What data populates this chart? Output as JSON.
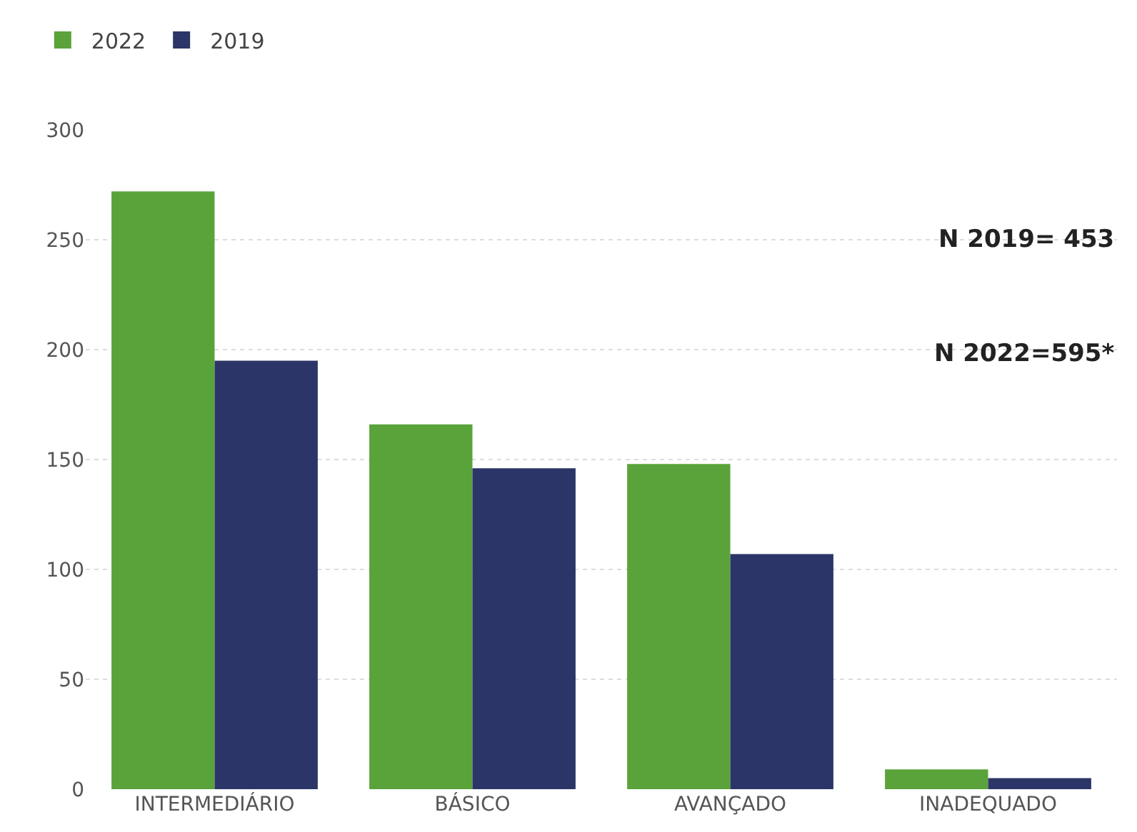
{
  "chart_data": {
    "type": "bar",
    "categories": [
      "INTERMEDIÁRIO",
      "BÁSICO",
      "AVANÇADO",
      "INADEQUADO"
    ],
    "series": [
      {
        "name": "2022",
        "color": "#5aa33a",
        "values": [
          272,
          166,
          148,
          9
        ]
      },
      {
        "name": "2019",
        "color": "#2c3567",
        "values": [
          195,
          146,
          107,
          5
        ]
      }
    ],
    "ylim": [
      0,
      300
    ],
    "yticks": [
      0,
      50,
      100,
      150,
      200,
      250,
      300
    ],
    "grid": "y",
    "legend": "top left",
    "annotations": [
      "N 2019= 453",
      "N 2022=595*"
    ]
  }
}
